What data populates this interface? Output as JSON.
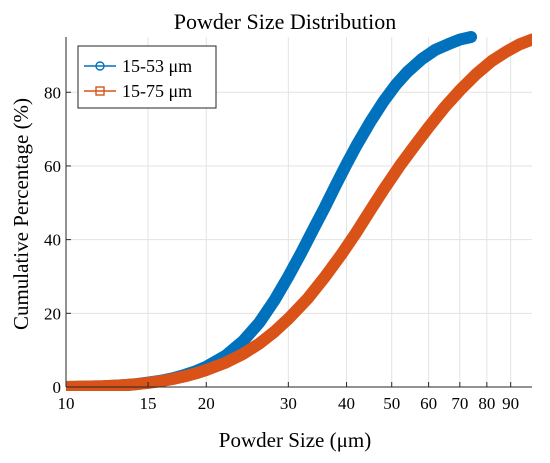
{
  "chart_data": {
    "type": "line",
    "title": "Powder Size Distribution",
    "xlabel": "Powder Size (μm)",
    "ylabel": "Cumulative Percentage (%)",
    "xscale": "log",
    "xlim": [
      10,
      100
    ],
    "ylim": [
      0,
      95
    ],
    "x_ticks": [
      10,
      15,
      20,
      30,
      40,
      50,
      60,
      70,
      80,
      90
    ],
    "x_tick_labels": [
      "10",
      "15",
      "20",
      "30",
      "40",
      "50",
      "60",
      "70",
      "80",
      "90"
    ],
    "y_ticks": [
      0,
      20,
      40,
      60,
      80
    ],
    "y_tick_labels": [
      "0",
      "20",
      "40",
      "60",
      "80"
    ],
    "grid": true,
    "legend_position": "top-left",
    "series": [
      {
        "name": "15-53 μm",
        "color": "#0072BD",
        "marker": "circle",
        "x": [
          10,
          11,
          12,
          13,
          14,
          15,
          16,
          17,
          18,
          19,
          20,
          22,
          24,
          26,
          28,
          30,
          32,
          34,
          36,
          38,
          40,
          42,
          45,
          48,
          51,
          54,
          58,
          62,
          66,
          70,
          74
        ],
        "y": [
          0,
          0.1,
          0.2,
          0.4,
          0.7,
          1.2,
          1.7,
          2.4,
          3.3,
          4.3,
          5.5,
          8.5,
          12.5,
          17.5,
          23.5,
          30,
          36.5,
          43,
          49,
          55,
          60.5,
          65.5,
          72,
          77.5,
          82,
          85.5,
          89,
          91.5,
          93,
          94.3,
          95
        ]
      },
      {
        "name": "15-75 μm",
        "color": "#D95319",
        "marker": "square",
        "x": [
          10,
          11,
          12,
          13,
          14,
          15,
          16,
          17,
          18,
          19,
          20,
          22,
          24,
          26,
          28,
          30,
          33,
          36,
          39,
          42,
          45,
          48,
          52,
          56,
          60,
          65,
          70,
          76,
          82,
          88,
          94,
          100
        ],
        "y": [
          0,
          0.1,
          0.2,
          0.4,
          0.7,
          1.1,
          1.6,
          2.2,
          2.9,
          3.7,
          4.6,
          6.6,
          9,
          11.8,
          15,
          18.5,
          24,
          30,
          36,
          42,
          48,
          53.5,
          60,
          65.5,
          70.5,
          76,
          80.5,
          85,
          88.5,
          91,
          93,
          94.3
        ]
      }
    ]
  }
}
